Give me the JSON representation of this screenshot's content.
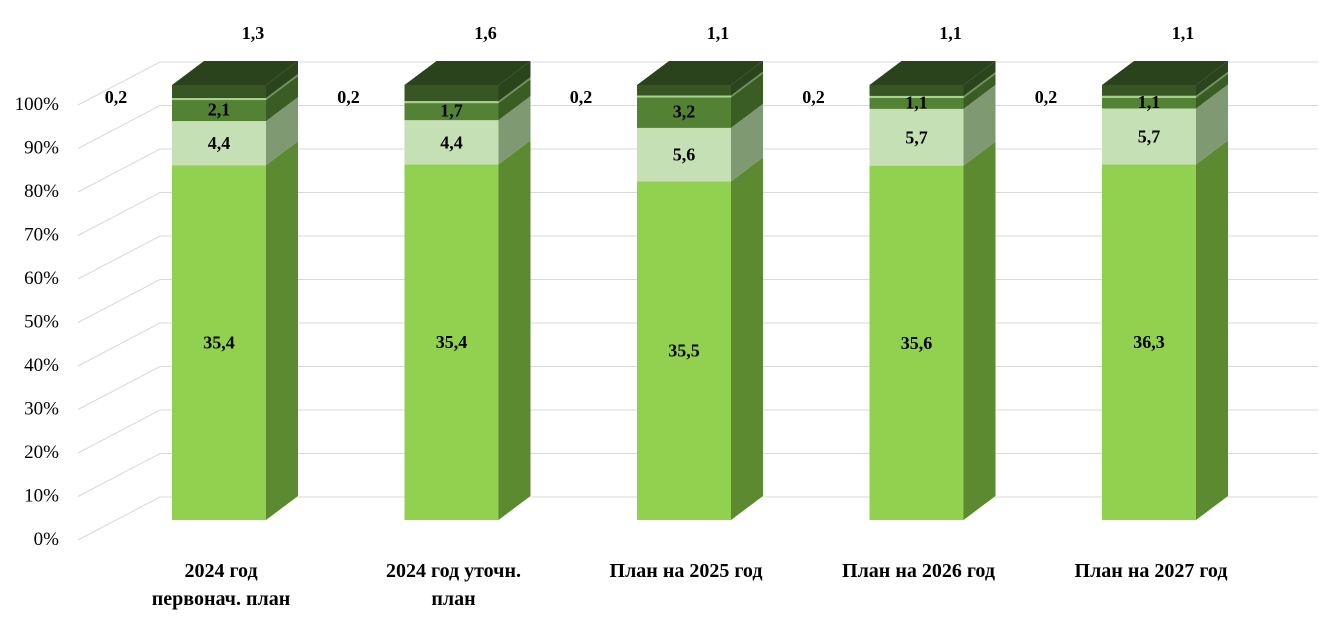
{
  "chart_data": {
    "type": "bar",
    "stacked": "percent",
    "three_d": true,
    "title": "",
    "xlabel": "",
    "ylabel": "",
    "ylim": [
      0,
      100
    ],
    "y_ticks": [
      "0%",
      "10%",
      "20%",
      "30%",
      "40%",
      "50%",
      "60%",
      "70%",
      "80%",
      "90%",
      "100%"
    ],
    "grid": true,
    "legend": "none",
    "categories": [
      [
        "2024 год",
        "первонач. план"
      ],
      [
        "2024 год уточн.",
        "план"
      ],
      [
        "План на 2025 год"
      ],
      [
        "План на 2026 год"
      ],
      [
        "План на 2027 год"
      ]
    ],
    "series": [
      {
        "values": [
          35.4,
          35.4,
          35.5,
          35.6,
          36.3
        ],
        "labels": [
          "35,4",
          "35,4",
          "35,5",
          "35,6",
          "36,3"
        ],
        "color": "#92d050",
        "side_color": "#5b8a31"
      },
      {
        "values": [
          4.4,
          4.4,
          5.6,
          5.7,
          5.7
        ],
        "labels": [
          "4,4",
          "4,4",
          "5,6",
          "5,7",
          "5,7"
        ],
        "color": "#c5e0b4",
        "side_color": "#7f9a73"
      },
      {
        "values": [
          2.1,
          1.7,
          3.2,
          1.1,
          1.1
        ],
        "labels": [
          "2,1",
          "1,7",
          "3,2",
          "1,1",
          "1,1"
        ],
        "color": "#548235",
        "side_color": "#3a5d24"
      },
      {
        "values": [
          0.2,
          0.2,
          0.2,
          0.2,
          0.2
        ],
        "labels": [
          "0,2",
          "0,2",
          "0,2",
          "0,2",
          "0,2"
        ],
        "color": "#a9d18e",
        "side_color": "#6f8f5a"
      },
      {
        "values": [
          1.3,
          1.6,
          1.1,
          1.1,
          1.1
        ],
        "labels": [
          "1,3",
          "1,6",
          "1,1",
          "1,1",
          "1,1"
        ],
        "color": "#375623",
        "side_color": "#2a441b"
      }
    ]
  }
}
